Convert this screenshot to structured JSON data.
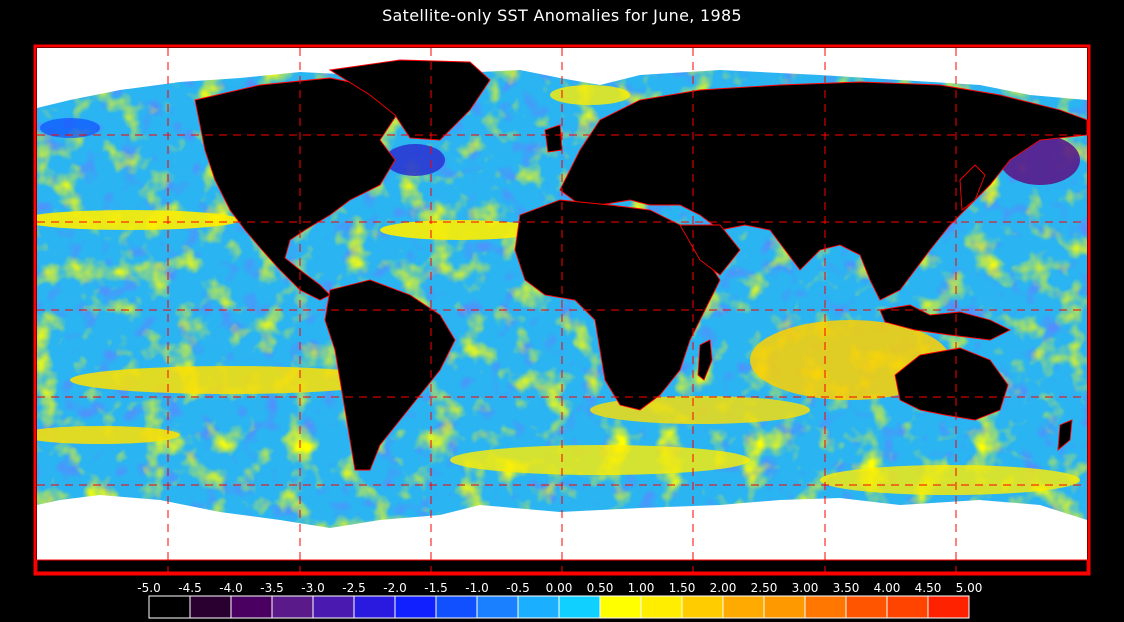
{
  "title": "Satellite-only SST Anomalies for June, 1985",
  "colors": {
    "frame": "#ff0000",
    "land": "#000000",
    "ice": "#ffffff",
    "coastline": "#ff0000",
    "grid": "#ff0000"
  },
  "legend": {
    "tick_labels": [
      "-5.0",
      "-4.5",
      "-4.0",
      "-3.5",
      "-3.0",
      "-2.5",
      "-2.0",
      "-1.5",
      "-1.0",
      "-0.5",
      "0.00",
      "0.50",
      "1.00",
      "1.50",
      "2.00",
      "2.50",
      "3.00",
      "3.50",
      "4.00",
      "4.50",
      "5.00"
    ],
    "colors": [
      "#000000",
      "#2a0030",
      "#4a0060",
      "#5a1a8a",
      "#4a1ab0",
      "#2a1ae0",
      "#1020ff",
      "#1050ff",
      "#1a80ff",
      "#1ab0ff",
      "#10d0ff",
      "#ffff00",
      "#ffee00",
      "#ffcc00",
      "#ffaa00",
      "#ff9900",
      "#ff7700",
      "#ff5500",
      "#ff4400",
      "#ff2200"
    ]
  }
}
